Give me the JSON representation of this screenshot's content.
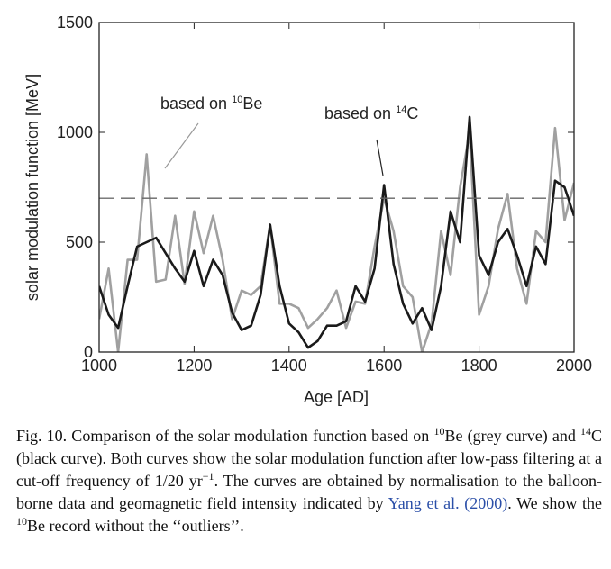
{
  "chart_data": {
    "type": "line",
    "xlabel": "Age [AD]",
    "ylabel": "solar modulation function [MeV]",
    "x": [
      1000,
      1020,
      1040,
      1060,
      1080,
      1100,
      1120,
      1140,
      1160,
      1180,
      1200,
      1220,
      1240,
      1260,
      1280,
      1300,
      1320,
      1340,
      1360,
      1380,
      1400,
      1420,
      1440,
      1460,
      1480,
      1500,
      1520,
      1540,
      1560,
      1580,
      1600,
      1620,
      1640,
      1660,
      1680,
      1700,
      1720,
      1740,
      1760,
      1780,
      1800,
      1820,
      1840,
      1860,
      1880,
      1900,
      1920,
      1940,
      1960,
      1980,
      2000
    ],
    "series": [
      {
        "color": "#a0a0a0",
        "values": [
          150,
          380,
          0,
          420,
          420,
          900,
          320,
          330,
          620,
          310,
          640,
          450,
          620,
          420,
          150,
          280,
          260,
          300,
          580,
          220,
          220,
          200,
          110,
          150,
          200,
          280,
          110,
          230,
          220,
          480,
          700,
          550,
          300,
          250,
          0,
          130,
          550,
          350,
          750,
          1000,
          170,
          300,
          560,
          720,
          380,
          220,
          550,
          500,
          1020,
          600,
          770
        ]
      },
      {
        "color": "#1a1a1a",
        "values": [
          300,
          170,
          110,
          300,
          480,
          500,
          520,
          450,
          380,
          320,
          460,
          300,
          420,
          350,
          180,
          100,
          120,
          260,
          580,
          300,
          130,
          90,
          20,
          50,
          120,
          120,
          140,
          300,
          230,
          380,
          760,
          400,
          220,
          130,
          200,
          100,
          300,
          640,
          500,
          1070,
          440,
          350,
          500,
          560,
          440,
          300,
          480,
          400,
          780,
          750,
          620
        ]
      }
    ],
    "reference_line": 700,
    "annotations": [
      {
        "text": "based on ",
        "sup": "10",
        "tail": "Be"
      },
      {
        "text": "based on ",
        "sup": "14",
        "tail": "C"
      }
    ],
    "xlim": [
      1000,
      2000
    ],
    "xticks": [
      1000,
      1200,
      1400,
      1600,
      1800,
      2000
    ],
    "ylim": [
      0,
      1500
    ],
    "yticks": [
      0,
      500,
      1000,
      1500
    ]
  },
  "caption": [
    "Fig. 10.  Comparison of the solar modulation function based on ",
    {
      "sup": "10"
    },
    "Be (grey curve) and ",
    {
      "sup": "14"
    },
    "C (black curve). Both curves show the solar modulation function after low-pass filtering at a cut-off frequency of 1/20 yr",
    {
      "sup": "−1"
    },
    ". The curves are obtained by normalisation to the balloon-borne data and geomagnetic field intensity indicated by ",
    {
      "link": "Yang et al. (2000)"
    },
    ". We show the ",
    {
      "sup": "10"
    },
    "Be record without the ‘‘outliers’’."
  ]
}
